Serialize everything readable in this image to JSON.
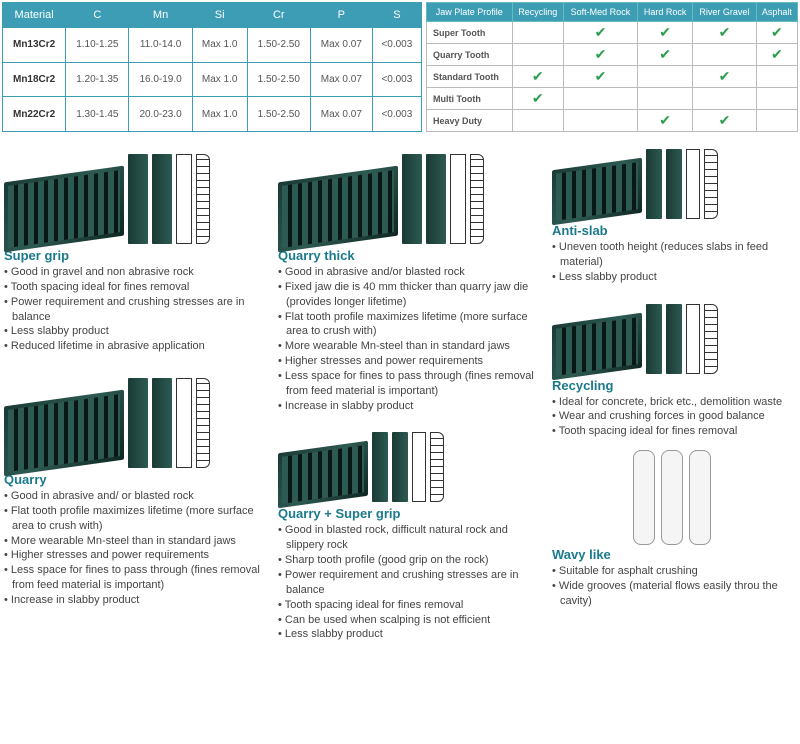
{
  "material_table": {
    "columns": [
      "Material",
      "C",
      "Mn",
      "Si",
      "Cr",
      "P",
      "S"
    ],
    "rows": [
      [
        "Mn13Cr2",
        "1.10-1.25",
        "11.0-14.0",
        "Max 1.0",
        "1.50-2.50",
        "Max 0.07",
        "<0.003"
      ],
      [
        "Mn18Cr2",
        "1.20-1.35",
        "16.0-19.0",
        "Max 1.0",
        "1.50-2.50",
        "Max 0.07",
        "<0.003"
      ],
      [
        "Mn22Cr2",
        "1.30-1.45",
        "20.0-23.0",
        "Max 1.0",
        "1.50-2.50",
        "Max 0.07",
        "<0.003"
      ]
    ],
    "header_bg": "#3c9db5",
    "border_color": "#3c9db5"
  },
  "profile_table": {
    "columns": [
      "Jaw Plate Profile",
      "Recycling",
      "Soft-Med Rock",
      "Hard Rock",
      "River Gravel",
      "Asphalt"
    ],
    "rows": [
      {
        "label": "Super Tooth",
        "checks": [
          false,
          true,
          true,
          true,
          true
        ]
      },
      {
        "label": "Quarry Tooth",
        "checks": [
          false,
          true,
          true,
          false,
          true
        ]
      },
      {
        "label": "Standard Tooth",
        "checks": [
          true,
          true,
          false,
          true,
          false
        ]
      },
      {
        "label": "Multi Tooth",
        "checks": [
          true,
          false,
          false,
          false,
          false
        ]
      },
      {
        "label": "Heavy Duty",
        "checks": [
          false,
          false,
          true,
          true,
          false
        ]
      }
    ],
    "check_color": "#2a9d4f"
  },
  "products": {
    "super_grip": {
      "title": "Super grip",
      "points": [
        "Good in gravel and non abrasive rock",
        "Tooth spacing ideal for fines removal",
        "Power requirement and crushing stresses are in balance",
        "Less slabby product",
        "Reduced lifetime in abrasive application"
      ]
    },
    "quarry": {
      "title": "Quarry",
      "points": [
        "Good in abrasive and/ or blasted rock",
        "Flat tooth profile maximizes lifetime (more surface area to crush with)",
        "More wearable Mn-steel than in standard jaws",
        "Higher stresses and power requirements",
        "Less space for fines to pass through (fines removal from feed material is important)",
        "Increase in slabby product"
      ]
    },
    "quarry_thick": {
      "title": "Quarry thick",
      "points": [
        "Good in abrasive and/or blasted rock",
        "Fixed jaw die is 40 mm thicker than quarry jaw die (provides longer lifetime)",
        "Flat tooth profile maximizes lifetime (more surface area to crush with)",
        "More wearable Mn-steel than in standard jaws",
        "Higher stresses and power requirements",
        "Less space for fines to pass through (fines removal from feed material is important)",
        "Increase in slabby product"
      ]
    },
    "quarry_super_grip": {
      "title": "Quarry + Super grip",
      "points": [
        "Good in blasted rock, difficult natural rock and slippery rock",
        "Sharp tooth profile (good grip on the rock)",
        "Power requirement and crushing stresses are in balance",
        "Tooth spacing ideal for fines removal",
        "Can be used when scalping is not efficient",
        "Less slabby product"
      ]
    },
    "anti_slab": {
      "title": "Anti-slab",
      "points": [
        "Uneven tooth height (reduces slabs in feed material)",
        "Less slabby product"
      ]
    },
    "recycling": {
      "title": "Recycling",
      "points": [
        "Ideal for concrete, brick etc., demolition waste",
        "Wear and crushing forces in good balance",
        "Tooth spacing ideal for fines removal"
      ]
    },
    "wavy_like": {
      "title": "Wavy like",
      "points": [
        "Suitable for asphalt crushing",
        "Wide grooves (material flows easily throu the cavity)"
      ]
    }
  },
  "title_color": "#1a7a8c"
}
